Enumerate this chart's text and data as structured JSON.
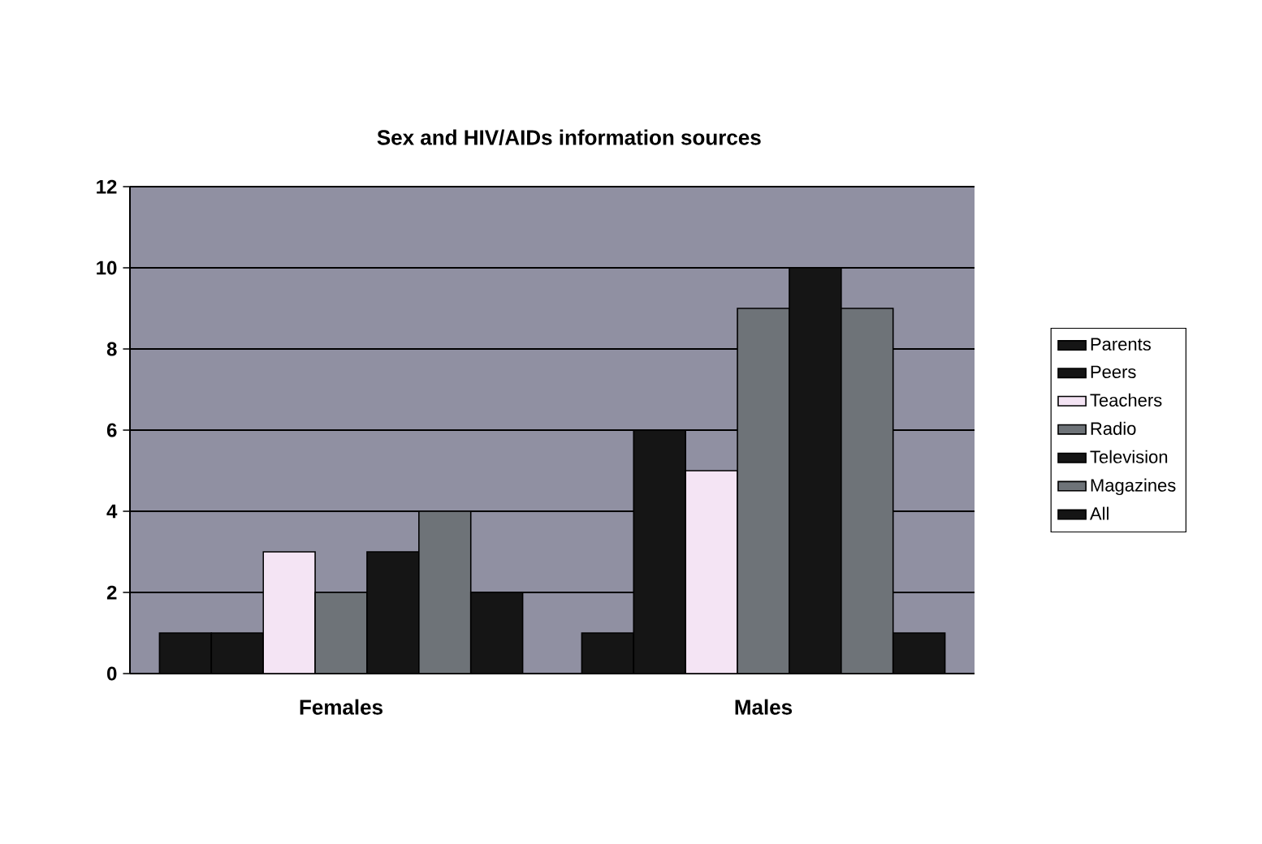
{
  "chart_data": {
    "type": "bar",
    "title": "Sex and HIV/AIDs information sources",
    "categories": [
      "Females",
      "Males"
    ],
    "series": [
      {
        "name": "Parents",
        "color": "#151515",
        "values": [
          1,
          1
        ]
      },
      {
        "name": "Peers",
        "color": "#151515",
        "values": [
          1,
          6
        ]
      },
      {
        "name": "Teachers",
        "color": "#f4e4f4",
        "values": [
          3,
          5
        ]
      },
      {
        "name": "Radio",
        "color": "#6e7378",
        "values": [
          2,
          9
        ]
      },
      {
        "name": "Television",
        "color": "#151515",
        "values": [
          3,
          10
        ]
      },
      {
        "name": "Magazines",
        "color": "#6e7378",
        "values": [
          4,
          9
        ]
      },
      {
        "name": "All",
        "color": "#151515",
        "values": [
          2,
          1
        ]
      }
    ],
    "ylim": [
      0,
      12
    ],
    "yticks": [
      0,
      2,
      4,
      6,
      8,
      10,
      12
    ],
    "grid": "y",
    "legend": "right"
  }
}
